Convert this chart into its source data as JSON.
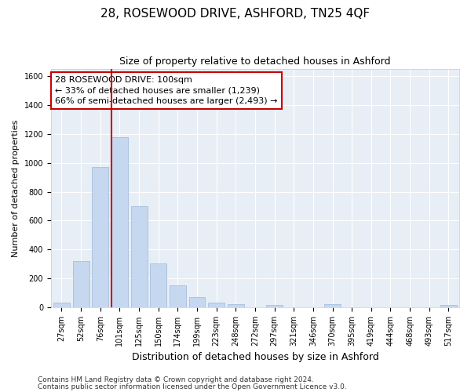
{
  "title1": "28, ROSEWOOD DRIVE, ASHFORD, TN25 4QF",
  "title2": "Size of property relative to detached houses in Ashford",
  "xlabel": "Distribution of detached houses by size in Ashford",
  "ylabel": "Number of detached properties",
  "categories": [
    "27sqm",
    "52sqm",
    "76sqm",
    "101sqm",
    "125sqm",
    "150sqm",
    "174sqm",
    "199sqm",
    "223sqm",
    "248sqm",
    "272sqm",
    "297sqm",
    "321sqm",
    "346sqm",
    "370sqm",
    "395sqm",
    "419sqm",
    "444sqm",
    "468sqm",
    "493sqm",
    "517sqm"
  ],
  "values": [
    30,
    320,
    970,
    1180,
    700,
    305,
    150,
    70,
    30,
    20,
    0,
    15,
    0,
    0,
    20,
    0,
    0,
    0,
    0,
    0,
    15
  ],
  "bar_color": "#c5d8f0",
  "bar_edge_color": "#9ab8d8",
  "vline_index": 3,
  "ylim": [
    0,
    1650
  ],
  "yticks": [
    0,
    200,
    400,
    600,
    800,
    1000,
    1200,
    1400,
    1600
  ],
  "annotation_line1": "28 ROSEWOOD DRIVE: 100sqm",
  "annotation_line2": "← 33% of detached houses are smaller (1,239)",
  "annotation_line3": "66% of semi-detached houses are larger (2,493) →",
  "annotation_box_color": "#ffffff",
  "annotation_box_edge": "#cc0000",
  "footnote1": "Contains HM Land Registry data © Crown copyright and database right 2024.",
  "footnote2": "Contains public sector information licensed under the Open Government Licence v3.0.",
  "fig_bg_color": "#ffffff",
  "plot_bg_color": "#e8eef5",
  "grid_color": "#ffffff",
  "vline_color": "#cc0000",
  "title1_fontsize": 11,
  "title2_fontsize": 9,
  "xlabel_fontsize": 9,
  "ylabel_fontsize": 8,
  "tick_fontsize": 7,
  "annot_fontsize": 8,
  "footnote_fontsize": 6.5
}
